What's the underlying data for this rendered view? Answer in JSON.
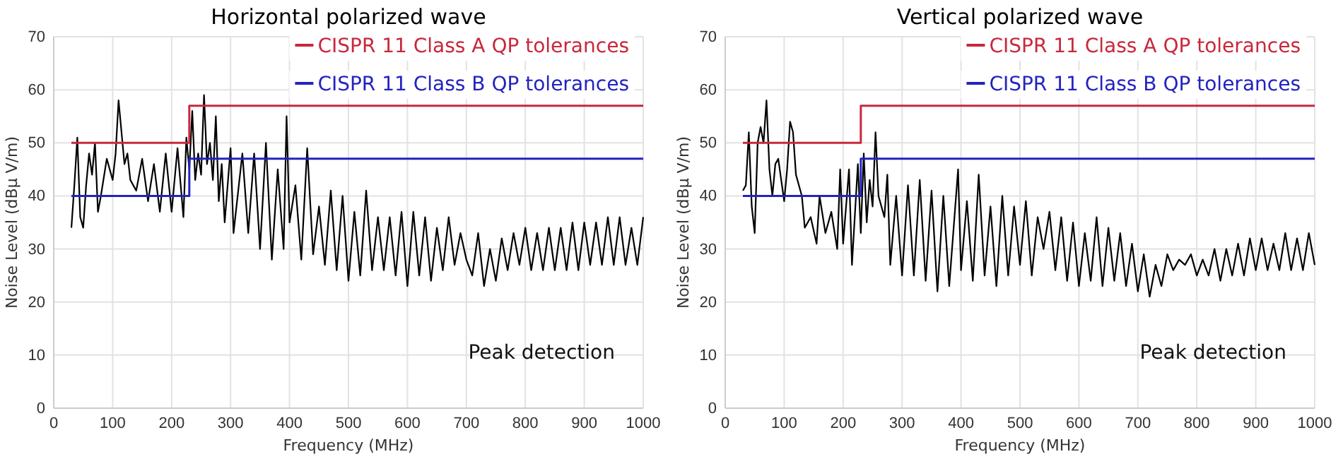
{
  "chart_data": [
    {
      "type": "line",
      "title": "Horizontal polarized wave",
      "xlabel": "Frequency (MHz)",
      "ylabel": "Noise Level (dBμ V/m)",
      "xlim": [
        0,
        1000
      ],
      "ylim": [
        0,
        70
      ],
      "xticks": [
        0,
        100,
        200,
        300,
        400,
        500,
        600,
        700,
        800,
        900,
        1000
      ],
      "yticks": [
        0,
        10,
        20,
        30,
        40,
        50,
        60,
        70
      ],
      "grid": true,
      "legend": "top right",
      "annotations": [
        "Peak detection"
      ],
      "series": [
        {
          "color": "#000000",
          "x": [
            30,
            35,
            40,
            45,
            50,
            55,
            60,
            65,
            70,
            75,
            80,
            90,
            100,
            105,
            110,
            115,
            120,
            125,
            130,
            140,
            150,
            160,
            170,
            180,
            190,
            200,
            210,
            220,
            225,
            230,
            235,
            240,
            245,
            250,
            255,
            260,
            265,
            270,
            275,
            280,
            285,
            290,
            300,
            305,
            320,
            330,
            340,
            350,
            360,
            370,
            380,
            390,
            395,
            400,
            410,
            420,
            430,
            440,
            450,
            460,
            470,
            480,
            490,
            500,
            510,
            520,
            530,
            540,
            550,
            560,
            570,
            580,
            590,
            600,
            610,
            620,
            630,
            640,
            650,
            660,
            670,
            680,
            690,
            700,
            710,
            720,
            730,
            740,
            750,
            760,
            770,
            780,
            790,
            800,
            810,
            820,
            830,
            840,
            850,
            860,
            870,
            880,
            890,
            900,
            910,
            920,
            930,
            940,
            950,
            960,
            970,
            980,
            990,
            1000
          ],
          "values": [
            34,
            42,
            51,
            36,
            34,
            42,
            48,
            44,
            50,
            37,
            40,
            47,
            43,
            48,
            58,
            52,
            46,
            48,
            43,
            41,
            47,
            39,
            46,
            37,
            48,
            37,
            49,
            36,
            51,
            45,
            56,
            43,
            48,
            44,
            59,
            46,
            50,
            43,
            55,
            39,
            46,
            35,
            49,
            33,
            48,
            33,
            48,
            30,
            50,
            28,
            45,
            30,
            55,
            35,
            42,
            28,
            49,
            29,
            38,
            27,
            41,
            26,
            40,
            24,
            37,
            25,
            41,
            26,
            36,
            26,
            36,
            25,
            37,
            23,
            37,
            25,
            36,
            24,
            34,
            26,
            36,
            27,
            33,
            28,
            25,
            33,
            23,
            30,
            24,
            32,
            26,
            33,
            27,
            34,
            26,
            33,
            26,
            34,
            26,
            34,
            26,
            35,
            26,
            35,
            27,
            35,
            27,
            36,
            27,
            36,
            27,
            34,
            27,
            36
          ]
        },
        {
          "name": "CISPR 11 Class A QP tolerances",
          "color": "#c8283c",
          "x": [
            30,
            230,
            230,
            1000
          ],
          "values": [
            50,
            50,
            57,
            57
          ]
        },
        {
          "name": "CISPR 11 Class B QP tolerances",
          "color": "#2323c0",
          "x": [
            30,
            230,
            230,
            1000
          ],
          "values": [
            40,
            40,
            47,
            47
          ]
        }
      ]
    },
    {
      "type": "line",
      "title": "Vertical polarized wave",
      "xlabel": "Frequency (MHz)",
      "ylabel": "Noise Level (dBμ V/m)",
      "xlim": [
        0,
        1000
      ],
      "ylim": [
        0,
        70
      ],
      "xticks": [
        0,
        100,
        200,
        300,
        400,
        500,
        600,
        700,
        800,
        900,
        1000
      ],
      "yticks": [
        0,
        10,
        20,
        30,
        40,
        50,
        60,
        70
      ],
      "grid": true,
      "legend": "top right",
      "annotations": [
        "Peak detection"
      ],
      "series": [
        {
          "color": "#000000",
          "x": [
            30,
            35,
            40,
            45,
            50,
            55,
            60,
            65,
            70,
            75,
            80,
            85,
            90,
            95,
            100,
            105,
            110,
            115,
            120,
            130,
            135,
            145,
            155,
            160,
            170,
            180,
            190,
            195,
            200,
            210,
            215,
            225,
            230,
            235,
            240,
            245,
            250,
            255,
            260,
            270,
            275,
            280,
            290,
            300,
            310,
            320,
            330,
            340,
            350,
            360,
            370,
            380,
            395,
            400,
            410,
            420,
            430,
            440,
            450,
            460,
            470,
            480,
            490,
            500,
            510,
            520,
            530,
            540,
            550,
            560,
            570,
            580,
            590,
            600,
            610,
            620,
            630,
            640,
            650,
            660,
            670,
            680,
            690,
            700,
            710,
            720,
            730,
            740,
            750,
            760,
            770,
            780,
            790,
            800,
            810,
            820,
            830,
            840,
            850,
            860,
            870,
            880,
            890,
            900,
            910,
            920,
            930,
            940,
            950,
            960,
            970,
            980,
            990,
            1000
          ],
          "values": [
            41,
            42,
            52,
            38,
            33,
            50,
            53,
            50,
            58,
            45,
            40,
            46,
            47,
            43,
            39,
            45,
            54,
            52,
            44,
            40,
            34,
            36,
            31,
            40,
            33,
            37,
            30,
            45,
            31,
            45,
            27,
            46,
            33,
            48,
            35,
            43,
            38,
            52,
            40,
            36,
            44,
            27,
            40,
            25,
            42,
            25,
            43,
            24,
            41,
            22,
            40,
            23,
            45,
            26,
            39,
            24,
            44,
            25,
            38,
            23,
            40,
            25,
            38,
            27,
            39,
            25,
            36,
            30,
            37,
            26,
            36,
            24,
            35,
            23,
            33,
            24,
            36,
            23,
            34,
            24,
            33,
            23,
            31,
            22,
            29,
            21,
            27,
            23,
            29,
            26,
            28,
            27,
            29,
            25,
            28,
            25,
            30,
            24,
            30,
            25,
            31,
            25,
            32,
            26,
            32,
            26,
            31,
            26,
            33,
            26,
            32,
            26,
            33,
            27
          ]
        },
        {
          "name": "CISPR 11 Class A QP tolerances",
          "color": "#c8283c",
          "x": [
            30,
            230,
            230,
            1000
          ],
          "values": [
            50,
            50,
            57,
            57
          ]
        },
        {
          "name": "CISPR 11 Class B QP tolerances",
          "color": "#2323c0",
          "x": [
            30,
            230,
            230,
            1000
          ],
          "values": [
            40,
            40,
            47,
            47
          ]
        }
      ]
    }
  ]
}
